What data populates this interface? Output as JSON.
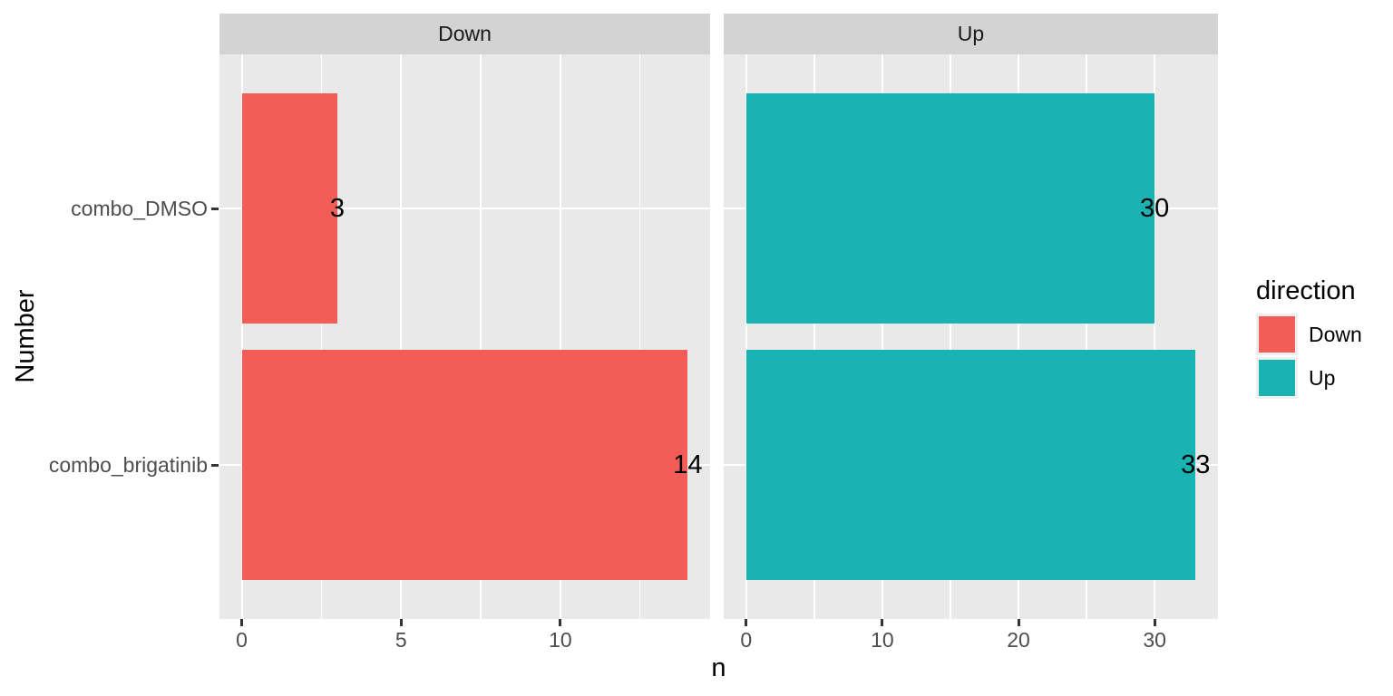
{
  "chart_data": {
    "type": "bar",
    "orientation": "horizontal",
    "facet_variable": "direction",
    "categories": [
      "combo_DMSO",
      "combo_brigatinib"
    ],
    "xlabel": "n",
    "ylabel": "Number",
    "facets": [
      {
        "label": "Down",
        "color_key": "Down",
        "values": [
          3,
          14
        ],
        "bar_labels": [
          "3",
          "14"
        ],
        "x_ticks": [
          0,
          5,
          10
        ],
        "x_minor_ticks": [
          2.5,
          7.5,
          12.5
        ],
        "x_range": [
          -0.7,
          14.7
        ]
      },
      {
        "label": "Up",
        "color_key": "Up",
        "values": [
          30,
          33
        ],
        "bar_labels": [
          "30",
          "33"
        ],
        "x_ticks": [
          0,
          10,
          20,
          30
        ],
        "x_minor_ticks": [
          5,
          15,
          25
        ],
        "x_range": [
          -1.65,
          34.65
        ]
      }
    ],
    "legend": {
      "title": "direction",
      "position": "right",
      "entries": [
        {
          "label": "Down",
          "color": "#F25D58"
        },
        {
          "label": "Up",
          "color": "#1AB3B4"
        }
      ]
    },
    "style": {
      "panel_bg": "#E9E9E9",
      "strip_bg": "#D3D3D3",
      "grid_color": "#FFFFFF",
      "tick_color": "#333333",
      "axis_text_color": "#4D4D4D",
      "strip_text_color": "#1A1A1A",
      "text_color": "#000000",
      "legend_key_bg": "#F0F0F0"
    }
  }
}
